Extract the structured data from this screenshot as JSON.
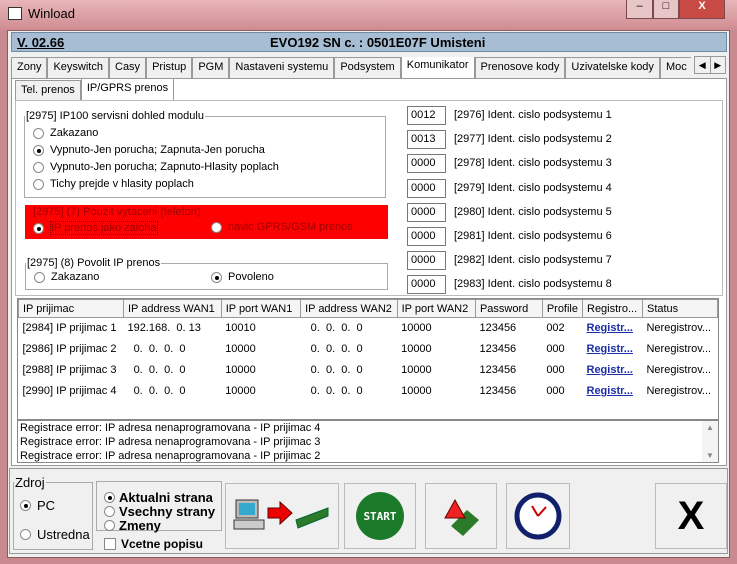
{
  "window": {
    "title": "Winload",
    "minimize": "–",
    "maximize": "□",
    "close": "X"
  },
  "header": {
    "version": "V. 02.66",
    "device": "EVO192  SN c. : 0501E07F Umisteni"
  },
  "tabs": [
    "Zony",
    "Keyswitch",
    "Casy",
    "Pristup",
    "PGM",
    "Nastaveni systemu",
    "Podsystem",
    "Komunikator",
    "Prenosove kody",
    "Uzivatelske kody",
    "Moc"
  ],
  "active_tab": "Komunikator",
  "subtabs": [
    "Tel. prenos",
    "IP/GPRS prenos"
  ],
  "group_dohled": {
    "legend": "[2975]  IP100 servisni dohled modulu",
    "options": [
      "Zakazano",
      "Vypnuto-Jen porucha; Zapnuta-Jen porucha",
      "Vypnuto-Jen porucha; Zapnuto-Hlasity poplach",
      "Tichy prejde v hlasity poplach"
    ],
    "selected": 1
  },
  "group_vytaceni": {
    "legend": "[2975] (7)  Pouzit vytaceni (telefon)",
    "options": [
      "IP prenos jako zaloha",
      "navic GPRS/GSM prenos"
    ],
    "selected": 0,
    "color": "#ff0000"
  },
  "group_povolit": {
    "legend": "[2975] (8)  Povolit IP prenos",
    "options": [
      "Zakazano",
      "Povoleno"
    ],
    "selected": 1
  },
  "ident": [
    {
      "value": "0012",
      "label": "[2976] Ident. cislo podsystemu 1"
    },
    {
      "value": "0013",
      "label": "[2977] Ident. cislo podsystemu 2"
    },
    {
      "value": "0000",
      "label": "[2978] Ident. cislo podsystemu 3"
    },
    {
      "value": "0000",
      "label": "[2979] Ident. cislo podsystemu 4"
    },
    {
      "value": "0000",
      "label": "[2980] Ident. cislo podsystemu 5"
    },
    {
      "value": "0000",
      "label": "[2981] Ident. cislo podsystemu 6"
    },
    {
      "value": "0000",
      "label": "[2982] Ident. cislo podsystemu 7"
    },
    {
      "value": "0000",
      "label": "[2983] Ident. cislo podsystemu 8"
    }
  ],
  "table": {
    "columns": [
      "IP prijimac",
      "IP address WAN1",
      "IP port WAN1",
      "IP address WAN2",
      "IP port WAN2",
      "Password",
      "Profile",
      "Registro...",
      "Status"
    ],
    "rows": [
      [
        "[2984] IP prijimac 1",
        "192.168.  0. 13",
        "10010",
        "  0.  0.  0.  0",
        "10000",
        "123456",
        "002",
        "Registr...",
        "Neregistrov..."
      ],
      [
        "[2986] IP prijimac 2",
        "  0.  0.  0.  0",
        "10000",
        "  0.  0.  0.  0",
        "10000",
        "123456",
        "000",
        "Registr...",
        "Neregistrov..."
      ],
      [
        "[2988] IP prijimac 3",
        "  0.  0.  0.  0",
        "10000",
        "  0.  0.  0.  0",
        "10000",
        "123456",
        "000",
        "Registr...",
        "Neregistrov..."
      ],
      [
        "[2990] IP prijimac 4",
        "  0.  0.  0.  0",
        "10000",
        "  0.  0.  0.  0",
        "10000",
        "123456",
        "000",
        "Registr...",
        "Neregistrov..."
      ]
    ]
  },
  "log": [
    "Registrace error: IP adresa nenaprogramovana - IP prijimac  4",
    "Registrace error: IP adresa nenaprogramovana - IP prijimac  3",
    "Registrace error: IP adresa nenaprogramovana - IP prijimac  2"
  ],
  "zdroj": {
    "legend": "Zdroj",
    "options": [
      "PC",
      "Ustredna"
    ],
    "selected": 0
  },
  "rozsah": {
    "options": [
      "Aktualni strana",
      "Vsechny strany",
      "Zmeny"
    ],
    "selected": 0,
    "checkbox": "Vcetne popisu",
    "checked": false
  },
  "buttons": {
    "start": "START",
    "close": "X",
    "icons": [
      "pc-to-panel-icon",
      "start-icon",
      "panel-upload-icon",
      "clock-icon",
      "close-icon"
    ]
  }
}
